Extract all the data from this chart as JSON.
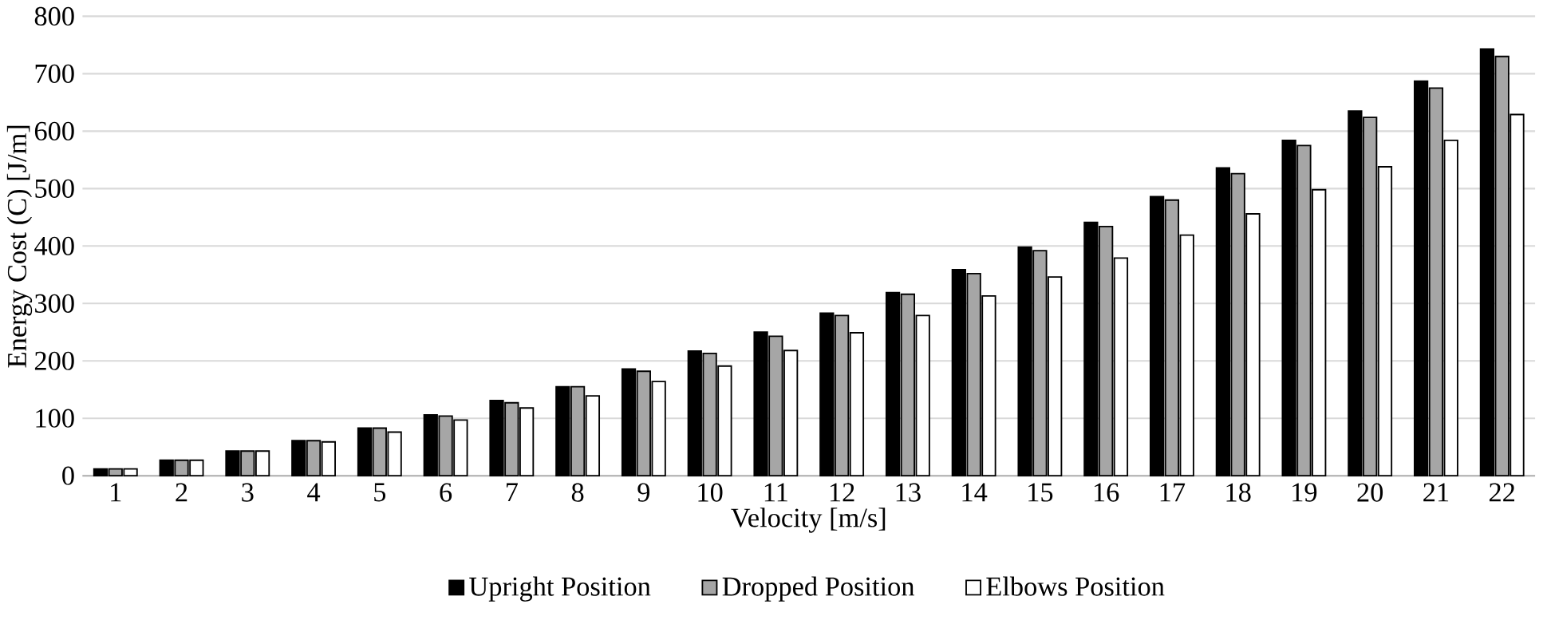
{
  "chart_data": {
    "type": "bar",
    "xlabel": "Velocity [m/s]",
    "ylabel": "Energy Cost (C) [J/m]",
    "categories": [
      "1",
      "2",
      "3",
      "4",
      "5",
      "6",
      "7",
      "8",
      "9",
      "10",
      "11",
      "12",
      "13",
      "14",
      "15",
      "16",
      "17",
      "18",
      "19",
      "20",
      "21",
      "22"
    ],
    "series": [
      {
        "name": "Upright Position",
        "color": "#000000",
        "values": [
          12,
          27,
          43,
          61,
          83,
          106,
          131,
          155,
          186,
          217,
          250,
          283,
          319,
          359,
          398,
          441,
          486,
          536,
          584,
          635,
          687,
          743
        ]
      },
      {
        "name": "Dropped Position",
        "color": "#a6a6a6",
        "values": [
          12,
          27,
          43,
          61,
          83,
          104,
          127,
          155,
          182,
          213,
          243,
          279,
          316,
          352,
          392,
          434,
          480,
          526,
          575,
          624,
          675,
          730
        ]
      },
      {
        "name": "Elbows Position",
        "color": "#ffffff",
        "values": [
          12,
          27,
          43,
          59,
          76,
          97,
          118,
          139,
          164,
          191,
          218,
          249,
          279,
          313,
          346,
          379,
          419,
          456,
          498,
          538,
          584,
          629
        ]
      }
    ],
    "ylim": [
      0,
      800
    ],
    "yticks": [
      0,
      100,
      200,
      300,
      400,
      500,
      600,
      700,
      800
    ],
    "grid": "y",
    "legend": "bottom"
  }
}
